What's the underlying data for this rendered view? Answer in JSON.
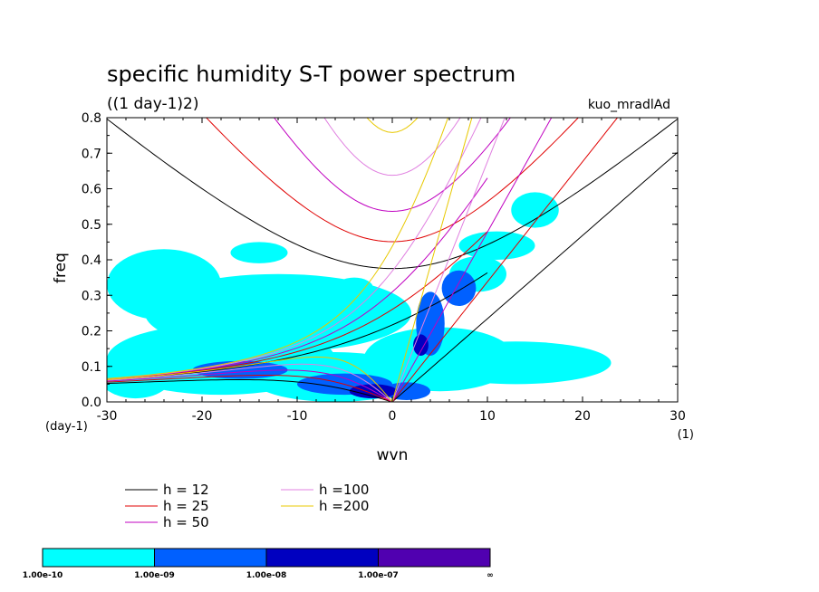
{
  "chart_data": {
    "type": "heatmap",
    "title": "specific humidity S-T power spectrum",
    "subtitle": "((1 day-1)2)",
    "run_label": "kuo_mradlAd",
    "xlabel": "wvn",
    "ylabel": "freq",
    "x_unit": "(1)",
    "y_unit": "(day-1)",
    "xlim": [
      -30,
      30
    ],
    "ylim": [
      0,
      0.8
    ],
    "x_ticks": [
      "-30",
      "-20",
      "-10",
      "0",
      "10",
      "20",
      "30"
    ],
    "y_ticks": [
      "0.0",
      "0.1",
      "0.2",
      "0.3",
      "0.4",
      "0.5",
      "0.6",
      "0.7",
      "0.8"
    ],
    "legend": [
      {
        "label": "h = 12",
        "color": "#000000"
      },
      {
        "label": "h = 25",
        "color": "#e00000"
      },
      {
        "label": "h = 50",
        "color": "#c000c0"
      },
      {
        "label": "h =100",
        "color": "#e080e0"
      },
      {
        "label": "h =200",
        "color": "#e8c800"
      }
    ],
    "equivalent_depths": [
      12,
      25,
      50,
      100,
      200
    ],
    "colorbar": {
      "colors": [
        "#00ffff",
        "#0060ff",
        "#0000c0",
        "#5000b0"
      ],
      "labels": [
        "1.00e-10",
        "1.00e-09",
        "1.00e-08",
        "1.00e-07",
        "∞"
      ]
    },
    "regions": [
      {
        "level": 1,
        "cx": -24,
        "cy": 0.33,
        "rx": 6,
        "ry": 0.1
      },
      {
        "level": 1,
        "cx": -12,
        "cy": 0.25,
        "rx": 14,
        "ry": 0.11
      },
      {
        "level": 1,
        "cx": -18,
        "cy": 0.12,
        "rx": 12,
        "ry": 0.1
      },
      {
        "level": 1,
        "cx": -27,
        "cy": 0.08,
        "rx": 4,
        "ry": 0.07
      },
      {
        "level": 1,
        "cx": -6,
        "cy": 0.07,
        "rx": 9,
        "ry": 0.07
      },
      {
        "level": 1,
        "cx": 5,
        "cy": 0.12,
        "rx": 8,
        "ry": 0.09
      },
      {
        "level": 1,
        "cx": 13,
        "cy": 0.11,
        "rx": 10,
        "ry": 0.06
      },
      {
        "level": 1,
        "cx": 9,
        "cy": 0.36,
        "rx": 3,
        "ry": 0.05
      },
      {
        "level": 1,
        "cx": 11,
        "cy": 0.44,
        "rx": 4,
        "ry": 0.04
      },
      {
        "level": 1,
        "cx": 15,
        "cy": 0.54,
        "rx": 2.5,
        "ry": 0.05
      },
      {
        "level": 1,
        "cx": -14,
        "cy": 0.42,
        "rx": 3,
        "ry": 0.03
      },
      {
        "level": 1,
        "cx": -4,
        "cy": 0.32,
        "rx": 2,
        "ry": 0.03
      },
      {
        "level": 2,
        "cx": -16,
        "cy": 0.09,
        "rx": 5,
        "ry": 0.025
      },
      {
        "level": 2,
        "cx": -5,
        "cy": 0.05,
        "rx": 5,
        "ry": 0.03
      },
      {
        "level": 2,
        "cx": 4,
        "cy": 0.22,
        "rx": 1.5,
        "ry": 0.09
      },
      {
        "level": 2,
        "cx": 7,
        "cy": 0.32,
        "rx": 1.8,
        "ry": 0.05
      },
      {
        "level": 2,
        "cx": 1.5,
        "cy": 0.03,
        "rx": 2.5,
        "ry": 0.025
      },
      {
        "level": 3,
        "cx": -2,
        "cy": 0.03,
        "rx": 2.5,
        "ry": 0.02
      },
      {
        "level": 3,
        "cx": 3,
        "cy": 0.16,
        "rx": 0.8,
        "ry": 0.03
      }
    ]
  }
}
